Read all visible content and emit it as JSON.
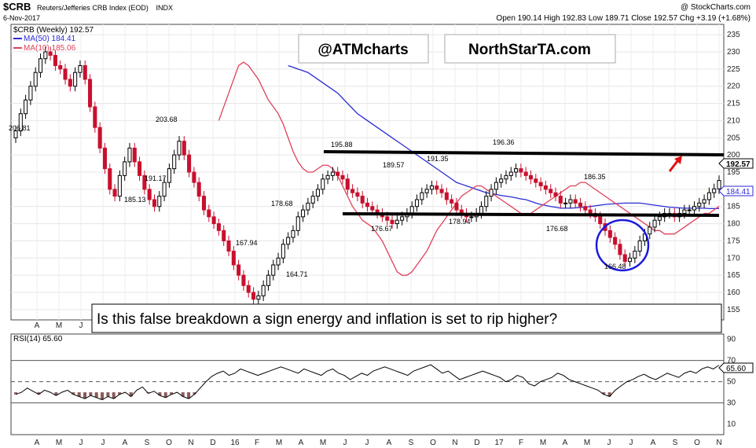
{
  "header": {
    "symbol": "$CRB",
    "name": "Reuters/Jefferies CRB Index (EOD)",
    "exchange": "INDX",
    "date": "6-Nov-2017",
    "copyright": "@ StockCharts.com",
    "ohlc": "Open 190.14  High 192.83  Low 189.71  Close 192.57  Chg +3.19 (+1.68%)"
  },
  "legend": {
    "price": "$CRB (Weekly) 192.57",
    "ma50": "MA(50) 184.41",
    "ma10": "MA(10) 185.06",
    "rsi": "RSI(14) 65.60"
  },
  "watermarks": {
    "left": "@ATMcharts",
    "right": "NorthStarTA.com"
  },
  "caption": "Is this false breakdown a sign energy and inflation is set to rip higher?",
  "badges": {
    "price": "192.57",
    "ma": "184.41",
    "rsi": "65.60"
  },
  "colors": {
    "up": "#000000",
    "down": "#c8102e",
    "ma50": "#2b2bd6",
    "ma10": "#e0405a",
    "trend": "#000000",
    "circle": "#1a1adc",
    "arrow": "#e01010",
    "rsi_fill": "#8b5a5a"
  },
  "chart_data": [
    {
      "type": "candlestick",
      "title": "$CRB Reuters/Jefferies CRB Index (EOD)",
      "series_name": "$CRB (Weekly)",
      "y_ticks": [
        155,
        160,
        165,
        170,
        175,
        180,
        185,
        190,
        195,
        200,
        205,
        210,
        215,
        220,
        225,
        230,
        235
      ],
      "ylim": [
        152,
        238
      ],
      "x_ticks": [
        "A",
        "M",
        "J",
        "J",
        "A",
        "S",
        "O",
        "N",
        "D",
        "16",
        "F",
        "M",
        "A",
        "M",
        "J",
        "J",
        "A",
        "S",
        "O",
        "N",
        "D",
        "17",
        "F",
        "M",
        "A",
        "M",
        "J",
        "J",
        "A",
        "S",
        "O",
        "N"
      ],
      "annotations": [
        "206.81",
        "203.68",
        "191.17",
        "185.13",
        "167.94",
        "178.68",
        "164.71",
        "195.88",
        "189.57",
        "176.67",
        "191.35",
        "178.94",
        "196.36",
        "186.35",
        "176.68",
        "166.48"
      ],
      "closes": [
        207,
        212,
        216,
        220,
        224,
        228,
        230,
        229,
        226,
        225,
        222,
        220,
        224,
        226,
        222,
        214,
        208,
        202,
        196,
        190,
        188,
        194,
        198,
        202,
        198,
        194,
        190,
        187,
        185,
        188,
        192,
        196,
        200,
        204,
        200,
        195,
        192,
        188,
        184,
        182,
        180,
        178,
        175,
        172,
        168,
        165,
        162,
        160,
        158,
        159,
        162,
        165,
        168,
        170,
        174,
        176,
        178,
        182,
        184,
        186,
        188,
        190,
        193,
        194,
        195,
        194,
        193,
        190,
        189,
        188,
        186,
        185,
        184,
        183,
        182,
        181,
        180,
        181,
        182,
        183,
        185,
        187,
        189,
        190,
        191,
        190,
        189,
        187,
        186,
        184,
        183,
        182,
        182,
        183,
        185,
        188,
        190,
        192,
        193,
        194,
        195,
        196,
        195,
        194,
        193,
        192,
        191,
        190,
        189,
        188,
        186,
        186,
        187,
        186,
        185,
        184,
        183,
        182,
        180,
        178,
        176,
        174,
        171,
        169,
        170,
        172,
        175,
        177,
        179,
        181,
        182,
        183,
        183,
        182,
        183,
        184,
        184,
        185,
        186,
        187,
        189,
        190.14,
        192.57
      ],
      "ma50": [
        226,
        225.5,
        225,
        224.5,
        224,
        223,
        222,
        221,
        220,
        219,
        218,
        216.5,
        215,
        213.5,
        212,
        211,
        210,
        209,
        208,
        207,
        206,
        205,
        204,
        203,
        202,
        201,
        200,
        199,
        198,
        197,
        196,
        195,
        194,
        193,
        192,
        191.5,
        191,
        190.5,
        190,
        189.5,
        189,
        188.8,
        188.5,
        188.2,
        188,
        187.8,
        187.5,
        187.2,
        187,
        186.5,
        186,
        185.6,
        185.3,
        185,
        184.8,
        184.5,
        184.5,
        184.5,
        184.6,
        184.7,
        184.8,
        185,
        185.2,
        185.4,
        185.6,
        185.7,
        185.8,
        185.9,
        186,
        186,
        186,
        186,
        185.8,
        185.6,
        185.4,
        185.2,
        185,
        184.8,
        184.7,
        184.6,
        184.5,
        184.5,
        184.5,
        184.5,
        184.5,
        184.4,
        184.4,
        184.41
      ],
      "ma10": [
        210,
        214,
        218,
        222,
        226,
        227,
        226,
        224,
        222,
        219,
        216,
        214,
        212,
        209,
        205,
        201,
        198,
        196,
        195,
        195,
        196,
        197,
        197,
        196,
        194,
        191,
        188,
        185,
        183,
        181,
        180,
        179,
        177,
        175,
        172,
        169,
        166,
        165,
        165,
        166,
        168,
        170,
        172,
        175,
        178,
        180,
        182,
        184,
        186,
        188,
        189,
        190,
        191,
        191,
        190,
        189,
        188,
        187,
        186,
        185,
        184,
        183,
        183,
        183,
        184,
        185,
        186,
        187,
        188,
        189,
        190,
        191,
        191,
        192,
        192,
        191,
        190,
        189,
        188,
        187,
        186,
        185,
        184,
        183,
        182,
        181,
        180,
        179,
        178,
        178,
        177,
        177,
        177,
        178,
        179,
        180,
        181,
        182,
        183,
        183,
        184,
        185.06
      ],
      "rsi": [
        38,
        40,
        44,
        41,
        38,
        42,
        40,
        37,
        40,
        42,
        38,
        36,
        34,
        37,
        35,
        33,
        36,
        34,
        38,
        40,
        36,
        42,
        45,
        39,
        41,
        37,
        35,
        38,
        40,
        36,
        34,
        38,
        44,
        50,
        55,
        58,
        60,
        56,
        58,
        62,
        60,
        58,
        56,
        58,
        60,
        62,
        64,
        62,
        60,
        58,
        62,
        60,
        58,
        56,
        60,
        62,
        58,
        56,
        52,
        55,
        58,
        56,
        60,
        62,
        64,
        62,
        60,
        58,
        56,
        60,
        62,
        64,
        66,
        62,
        58,
        60,
        56,
        52,
        54,
        56,
        58,
        60,
        58,
        56,
        54,
        50,
        52,
        56,
        54,
        48,
        46,
        50,
        52,
        54,
        58,
        56,
        52,
        50,
        48,
        46,
        44,
        42,
        38,
        36,
        42,
        46,
        50,
        52,
        55,
        57,
        54,
        52,
        55,
        58,
        56,
        54,
        58,
        60,
        58,
        62,
        64,
        62,
        65.6
      ]
    },
    {
      "type": "line",
      "title": "RSI(14)",
      "series_name": "RSI(14)",
      "y_ticks": [
        10,
        30,
        50,
        70,
        90
      ],
      "ylim": [
        0,
        95
      ],
      "last": 65.6
    }
  ]
}
